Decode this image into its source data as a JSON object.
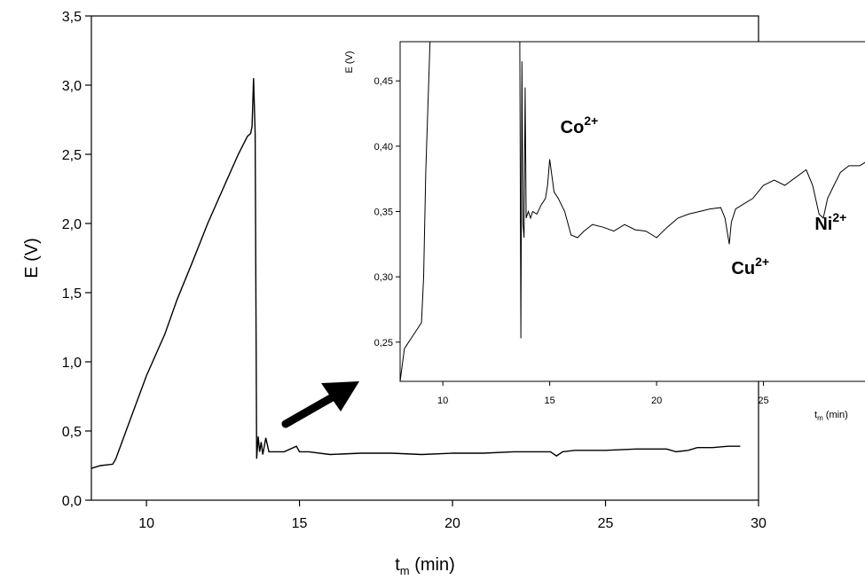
{
  "chart_data": [
    {
      "id": "main",
      "type": "line",
      "xlabel_base": "t",
      "xlabel_sub": "m",
      "xlabel_rest": " (min)",
      "ylabel": "E (V)",
      "xlim": [
        8.2,
        30
      ],
      "ylim": [
        0,
        3.5
      ],
      "xticks": [
        10,
        15,
        20,
        25,
        30
      ],
      "xtick_labels": [
        "10",
        "15",
        "20",
        "25",
        "30"
      ],
      "yticks": [
        0,
        0.5,
        1.0,
        1.5,
        2.0,
        2.5,
        3.0,
        3.5
      ],
      "ytick_labels": [
        "0,0",
        "0,5",
        "1,0",
        "1,5",
        "2,0",
        "2,5",
        "3,0",
        "3,5"
      ],
      "grid": false,
      "series": [
        {
          "x": [
            8.2,
            8.5,
            8.9,
            9.0,
            9.5,
            10.0,
            10.5,
            10.6,
            11.0,
            11.5,
            12.0,
            12.5,
            13.0,
            13.3,
            13.4,
            13.45,
            13.5,
            13.55,
            13.6,
            13.65,
            13.7,
            13.75,
            13.8,
            13.9,
            14.0,
            14.1,
            14.2,
            14.5,
            14.9,
            15.0,
            15.3,
            16.0,
            17.0,
            18.0,
            19.0,
            20.0,
            21.0,
            22.0,
            23.0,
            23.2,
            23.4,
            23.6,
            24.0,
            25.0,
            26.0,
            27.0,
            27.3,
            27.7,
            28.0,
            28.5,
            29.0,
            29.4
          ],
          "y": [
            0.23,
            0.25,
            0.26,
            0.3,
            0.6,
            0.9,
            1.15,
            1.2,
            1.45,
            1.72,
            2.0,
            2.25,
            2.5,
            2.63,
            2.65,
            2.7,
            3.05,
            2.65,
            0.3,
            0.46,
            0.35,
            0.42,
            0.33,
            0.45,
            0.35,
            0.35,
            0.35,
            0.35,
            0.39,
            0.35,
            0.35,
            0.33,
            0.34,
            0.34,
            0.33,
            0.34,
            0.34,
            0.35,
            0.35,
            0.35,
            0.32,
            0.35,
            0.36,
            0.36,
            0.37,
            0.37,
            0.35,
            0.36,
            0.38,
            0.38,
            0.39,
            0.39
          ]
        }
      ]
    },
    {
      "id": "inset",
      "type": "line",
      "xlabel_base": "t",
      "xlabel_sub": "m",
      "xlabel_rest": " (min)",
      "ylabel": "E (V)",
      "xlim": [
        8,
        30
      ],
      "ylim": [
        0.22,
        0.48
      ],
      "xticks": [
        10,
        15,
        20,
        25
      ],
      "xtick_labels": [
        "10",
        "15",
        "20",
        "25"
      ],
      "yticks": [
        0.25,
        0.3,
        0.35,
        0.4,
        0.45
      ],
      "ytick_labels": [
        "0,25",
        "0,30",
        "0,35",
        "0,40",
        "0,45"
      ],
      "grid": false,
      "annotations": [
        {
          "base": "Co",
          "sup": "2+",
          "x": 15.5,
          "y": 0.41
        },
        {
          "base": "Cu",
          "sup": "2+",
          "x": 23.5,
          "y": 0.302
        },
        {
          "base": "Ni",
          "sup": "2+",
          "x": 27.4,
          "y": 0.336
        }
      ],
      "series": [
        {
          "x": [
            8.0,
            8.2,
            8.4,
            8.6,
            8.8,
            9.0,
            9.1,
            9.2,
            9.3,
            9.4,
            13.6,
            13.65,
            13.7,
            13.75,
            13.8,
            13.85,
            13.9,
            14.0,
            14.1,
            14.2,
            14.4,
            14.6,
            14.8,
            14.9,
            15.0,
            15.2,
            15.4,
            15.7,
            16.0,
            16.3,
            16.6,
            17.0,
            17.5,
            18.0,
            18.5,
            19.0,
            19.5,
            20.0,
            20.5,
            21.0,
            21.5,
            22.0,
            22.5,
            23.0,
            23.2,
            23.4,
            23.5,
            23.7,
            24.0,
            24.5,
            25.0,
            25.5,
            26.0,
            26.5,
            27.0,
            27.3,
            27.6,
            27.8,
            28.0,
            28.3,
            28.6,
            29.0,
            29.5,
            30.0
          ],
          "y": [
            0.22,
            0.245,
            0.25,
            0.255,
            0.26,
            0.265,
            0.3,
            0.38,
            0.43,
            0.48,
            0.48,
            0.253,
            0.465,
            0.34,
            0.33,
            0.445,
            0.345,
            0.35,
            0.345,
            0.35,
            0.348,
            0.355,
            0.36,
            0.37,
            0.39,
            0.365,
            0.36,
            0.35,
            0.332,
            0.33,
            0.335,
            0.34,
            0.338,
            0.335,
            0.34,
            0.336,
            0.335,
            0.33,
            0.338,
            0.345,
            0.348,
            0.35,
            0.352,
            0.353,
            0.345,
            0.325,
            0.342,
            0.352,
            0.355,
            0.36,
            0.37,
            0.374,
            0.37,
            0.376,
            0.382,
            0.37,
            0.348,
            0.345,
            0.36,
            0.37,
            0.38,
            0.385,
            0.385,
            0.39
          ]
        }
      ]
    }
  ]
}
